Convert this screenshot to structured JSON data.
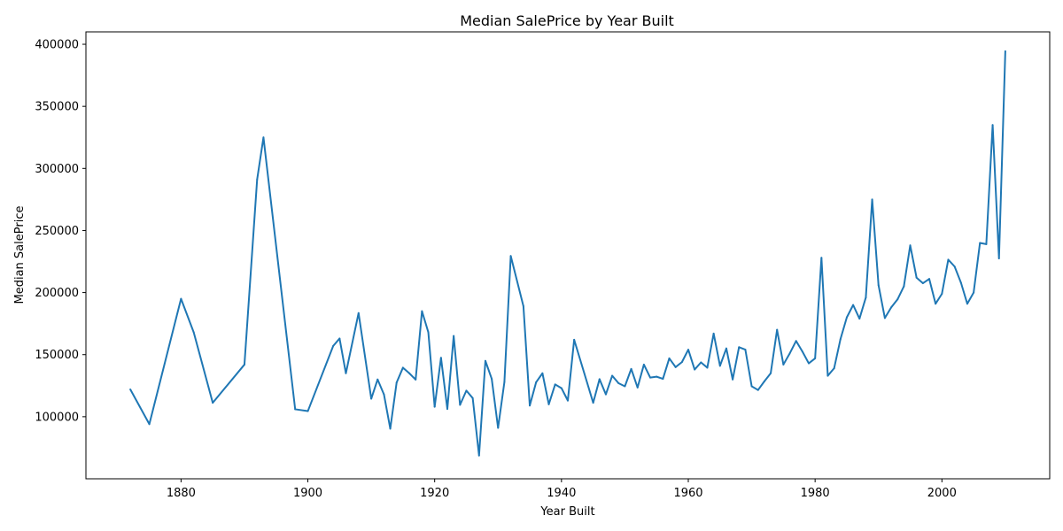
{
  "chart_data": {
    "type": "line",
    "title": "Median SalePrice by Year Built",
    "xlabel": "Year Built",
    "ylabel": "Median SalePrice",
    "xlim": [
      1865,
      2017
    ],
    "ylim": [
      50000,
      410000
    ],
    "xticks": [
      1880,
      1900,
      1920,
      1940,
      1960,
      1980,
      2000
    ],
    "yticks": [
      100000,
      150000,
      200000,
      250000,
      300000,
      350000,
      400000
    ],
    "grid": false,
    "line_color": "#1f77b4",
    "series": [
      {
        "x": [
          1872,
          1875,
          1880,
          1882,
          1885,
          1890,
          1892,
          1893,
          1898,
          1900,
          1904,
          1905,
          1906,
          1908,
          1910,
          1911,
          1912,
          1913,
          1914,
          1915,
          1916,
          1917,
          1918,
          1919,
          1920,
          1921,
          1922,
          1923,
          1924,
          1925,
          1926,
          1927,
          1928,
          1929,
          1930,
          1931,
          1932,
          1934,
          1935,
          1936,
          1937,
          1938,
          1939,
          1940,
          1941,
          1942,
          1945,
          1946,
          1947,
          1948,
          1949,
          1950,
          1951,
          1952,
          1953,
          1954,
          1955,
          1956,
          1957,
          1958,
          1959,
          1960,
          1961,
          1962,
          1963,
          1964,
          1965,
          1966,
          1967,
          1968,
          1969,
          1970,
          1971,
          1972,
          1973,
          1974,
          1975,
          1976,
          1977,
          1978,
          1979,
          1980,
          1981,
          1982,
          1983,
          1984,
          1985,
          1986,
          1987,
          1988,
          1989,
          1990,
          1991,
          1992,
          1993,
          1994,
          1995,
          1996,
          1997,
          1998,
          1999,
          2000,
          2001,
          2002,
          2003,
          2004,
          2005,
          2006,
          2007,
          2008,
          2009,
          2010
        ],
        "values": [
          122000,
          94000,
          195000,
          168000,
          111250,
          142000,
          291000,
          325000,
          106000,
          104500,
          157000,
          163000,
          135000,
          183500,
          114500,
          130000,
          118000,
          90350,
          127500,
          139500,
          135000,
          129900,
          185000,
          168000,
          108000,
          147500,
          106250,
          165000,
          109500,
          121000,
          115000,
          68750,
          145000,
          130500,
          91000,
          128000,
          229500,
          189000,
          108959,
          127750,
          135000,
          110000,
          126000,
          123000,
          113000,
          162000,
          111250,
          130250,
          118000,
          133000,
          127000,
          124500,
          138500,
          123500,
          142000,
          131500,
          132250,
          130500,
          147000,
          139950,
          144000,
          154000,
          138000,
          143750,
          139500,
          167000,
          141000,
          155000,
          130000,
          156000,
          154000,
          124500,
          121500,
          128500,
          135000,
          170000,
          142000,
          151000,
          161000,
          152500,
          143000,
          147000,
          228000,
          133000,
          139000,
          162500,
          180000,
          190000,
          179000,
          196000,
          275000,
          206000,
          179500,
          188000,
          194500,
          205000,
          238000,
          212000,
          207500,
          211000,
          191000,
          199000,
          226500,
          221000,
          208000,
          191000,
          200000,
          240000,
          239000,
          335000,
          227500,
          394432
        ]
      }
    ]
  }
}
